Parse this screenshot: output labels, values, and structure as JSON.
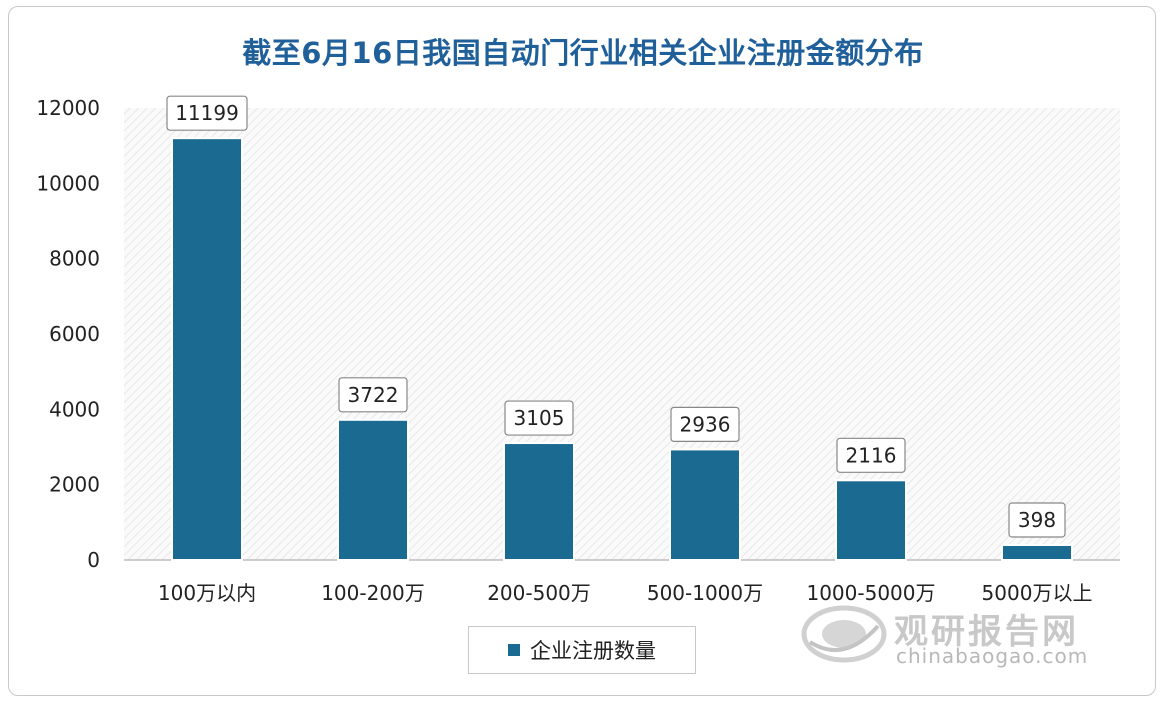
{
  "chart_data": {
    "type": "bar",
    "title": "截至6月16日我国自动门行业相关企业注册金额分布",
    "categories": [
      "100万以内",
      "100-200万",
      "200-500万",
      "500-1000万",
      "1000-5000万",
      "5000万以上"
    ],
    "series": [
      {
        "name": "企业注册数量",
        "values": [
          11199,
          3722,
          3105,
          2936,
          2116,
          398
        ]
      }
    ],
    "data_labels": [
      "11199",
      "3722",
      "3105",
      "2936",
      "2116",
      "398"
    ],
    "yticks": [
      0,
      2000,
      4000,
      6000,
      8000,
      10000,
      12000
    ],
    "ytick_labels": [
      "0",
      "2000",
      "4000",
      "6000",
      "8000",
      "10000",
      "12000"
    ],
    "ylim": [
      0,
      12000
    ],
    "xlabel": "",
    "ylabel": "",
    "legend_position": "bottom-center",
    "bar_color": "#1a6a92"
  },
  "watermark": {
    "brand": "观研报告网",
    "url": "chinabaogao.com"
  }
}
